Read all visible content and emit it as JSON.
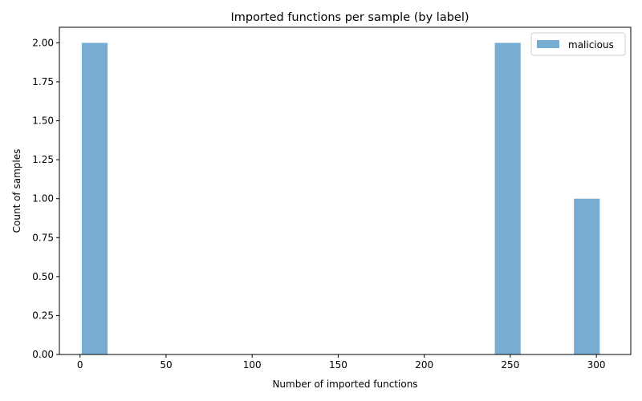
{
  "chart_data": {
    "type": "bar",
    "title": "Imported functions per sample (by label)",
    "xlabel": "Number of imported functions",
    "ylabel": "Count of samples",
    "xlim": [
      -12,
      320
    ],
    "ylim": [
      0,
      2.1
    ],
    "x_ticks": [
      0,
      50,
      100,
      150,
      200,
      250,
      300
    ],
    "x_tick_labels": [
      "0",
      "50",
      "100",
      "150",
      "200",
      "250",
      "300"
    ],
    "y_ticks": [
      0,
      0.25,
      0.5,
      0.75,
      1.0,
      1.25,
      1.5,
      1.75,
      2.0
    ],
    "y_tick_labels": [
      "0.00",
      "0.25",
      "0.50",
      "0.75",
      "1.00",
      "1.25",
      "1.50",
      "1.75",
      "2.00"
    ],
    "grid": false,
    "legend_position": "top-right",
    "series": [
      {
        "name": "malicious",
        "color": "#77acd3",
        "bins": [
          {
            "x_start": 1,
            "x_end": 16,
            "count": 2
          },
          {
            "x_start": 241,
            "x_end": 256,
            "count": 2
          },
          {
            "x_start": 287,
            "x_end": 302,
            "count": 1
          }
        ]
      }
    ]
  }
}
